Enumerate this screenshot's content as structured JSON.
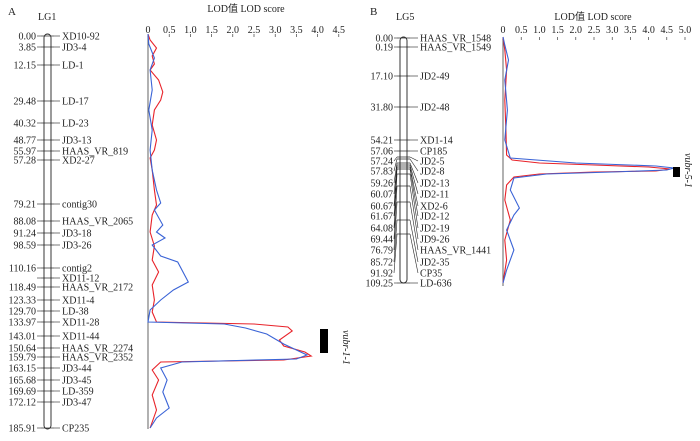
{
  "panels": [
    {
      "letter": "A",
      "group": "LG1",
      "lod_title": "LOD值 LOD score",
      "lod_ticks": [
        "0",
        "0.5",
        "1.0",
        "1.5",
        "2.0",
        "2.5",
        "3.0",
        "3.5",
        "4.0",
        "4.5"
      ],
      "qtl_label": "vubr-1-1",
      "markers": [
        {
          "pos": "0.00",
          "name": "XD10-92"
        },
        {
          "pos": "3.85",
          "name": "JD3-4"
        },
        {
          "pos": "12.15",
          "name": "LD-1"
        },
        {
          "pos": "29.48",
          "name": "LD-17"
        },
        {
          "pos": "40.32",
          "name": "LD-23"
        },
        {
          "pos": "48.77",
          "name": "JD3-13"
        },
        {
          "pos": "55.97",
          "name": "HAAS_VR_819"
        },
        {
          "pos": "57.28",
          "name": "XD2-27"
        },
        {
          "pos": "79.21",
          "name": "contig30"
        },
        {
          "pos": "88.08",
          "name": "HAAS_VR_2065"
        },
        {
          "pos": "91.24",
          "name": "JD3-18"
        },
        {
          "pos": "98.59",
          "name": "JD3-26"
        },
        {
          "pos": "110.16",
          "name": "contig2"
        },
        {
          "pos": "",
          "name": "XD11-12"
        },
        {
          "pos": "118.49",
          "name": "HAAS_VR_2172"
        },
        {
          "pos": "123.33",
          "name": "XD11-4"
        },
        {
          "pos": "129.70",
          "name": "LD-38"
        },
        {
          "pos": "133.97",
          "name": "XD11-28"
        },
        {
          "pos": "143.01",
          "name": "XD11-44"
        },
        {
          "pos": "150.64",
          "name": "HAAS_VR_2274"
        },
        {
          "pos": "159.79",
          "name": "HAAS_VR_2352"
        },
        {
          "pos": "163.15",
          "name": "JD3-44"
        },
        {
          "pos": "165.68",
          "name": "JD3-45"
        },
        {
          "pos": "169.69",
          "name": "LD-359"
        },
        {
          "pos": "172.12",
          "name": "JD3-47"
        },
        {
          "pos": "185.91",
          "name": "CP235"
        }
      ]
    },
    {
      "letter": "B",
      "group": "LG5",
      "lod_title": "LOD值 LOD score",
      "lod_ticks": [
        "0",
        "0.5",
        "1.0",
        "1.5",
        "2.0",
        "2.5",
        "3.0",
        "3.5",
        "4.0",
        "4.5",
        "5.0"
      ],
      "qtl_label": "vubr-5-1",
      "markers": [
        {
          "pos": "0.00",
          "name": "HAAS_VR_1548"
        },
        {
          "pos": "0.19",
          "name": "HAAS_VR_1549"
        },
        {
          "pos": "17.10",
          "name": "JD2-49"
        },
        {
          "pos": "31.80",
          "name": "JD2-48"
        },
        {
          "pos": "54.21",
          "name": "XD1-14"
        },
        {
          "pos": "57.06",
          "name": "CP185"
        },
        {
          "pos": "57.24",
          "name": "JD2-5"
        },
        {
          "pos": "57.83",
          "name": "JD2-8"
        },
        {
          "pos": "59.26",
          "name": "JD2-13"
        },
        {
          "pos": "60.07",
          "name": "JD2-11"
        },
        {
          "pos": "60.67",
          "name": "XD2-6"
        },
        {
          "pos": "61.67",
          "name": "JD2-12"
        },
        {
          "pos": "64.08",
          "name": "JD2-19"
        },
        {
          "pos": "69.44",
          "name": "JD9-26"
        },
        {
          "pos": "76.79",
          "name": "HAAS_VR_1441"
        },
        {
          "pos": "85.72",
          "name": "JD2-35"
        },
        {
          "pos": "91.92",
          "name": "CP35"
        },
        {
          "pos": "109.25",
          "name": "LD-636"
        }
      ]
    }
  ],
  "colors": {
    "red_curve": "#e8232a",
    "blue_curve": "#3a63d6",
    "ink": "#222222"
  }
}
